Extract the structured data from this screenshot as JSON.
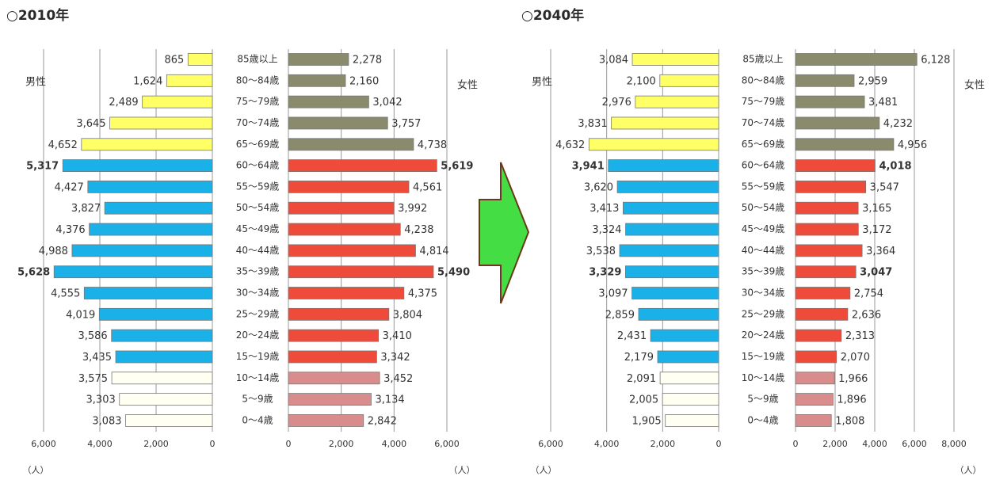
{
  "chart_data": [
    {
      "type": "pyramid",
      "title": "○2010年",
      "categories": [
        "85歳以上",
        "80～84歳",
        "75～79歳",
        "70～74歳",
        "65～69歳",
        "60～64歳",
        "55～59歳",
        "50～54歳",
        "45～49歳",
        "40～44歳",
        "35～39歳",
        "30～34歳",
        "25～29歳",
        "20～24歳",
        "15～19歳",
        "10～14歳",
        "5～9歳",
        "0～4歳"
      ],
      "bold_indices": [
        5,
        10
      ],
      "series": [
        {
          "name": "男性",
          "side": "left",
          "unit_label": "（人）",
          "values": [
            865,
            1624,
            2489,
            3645,
            4652,
            5317,
            4427,
            3827,
            4376,
            4988,
            5628,
            4555,
            4019,
            3586,
            3435,
            3575,
            3303,
            3083
          ],
          "value_labels": [
            "865",
            "1,624",
            "2,489",
            "3,645",
            "4,652",
            "5,317",
            "4,427",
            "3,827",
            "4,376",
            "4,988",
            "5,628",
            "4,555",
            "4,019",
            "3,586",
            "3,435",
            "3,575",
            "3,303",
            "3,083"
          ],
          "colors": [
            "#ffff66",
            "#ffff66",
            "#ffff66",
            "#ffff66",
            "#ffff66",
            "#1ab0e8",
            "#1ab0e8",
            "#1ab0e8",
            "#1ab0e8",
            "#1ab0e8",
            "#1ab0e8",
            "#1ab0e8",
            "#1ab0e8",
            "#1ab0e8",
            "#1ab0e8",
            "#fffff2",
            "#fffff2",
            "#fffff2"
          ],
          "xlim": [
            0,
            6000
          ],
          "xticks": [
            {
              "value": 6000,
              "label": "6,000"
            },
            {
              "value": 4000,
              "label": "4,000"
            },
            {
              "value": 2000,
              "label": "2,000"
            },
            0
          ]
        },
        {
          "name": "女性",
          "side": "right",
          "unit_label": "（人）",
          "values": [
            2278,
            2160,
            3042,
            3757,
            4738,
            5619,
            4561,
            3992,
            4238,
            4814,
            5490,
            4375,
            3804,
            3410,
            3342,
            3452,
            3134,
            2842
          ],
          "value_labels": [
            "2,278",
            "2,160",
            "3,042",
            "3,757",
            "4,738",
            "5,619",
            "4,561",
            "3,992",
            "4,238",
            "4,814",
            "5,490",
            "4,375",
            "3,804",
            "3,410",
            "3,342",
            "3,452",
            "3,134",
            "2,842"
          ],
          "colors": [
            "#8a8a6c",
            "#8a8a6c",
            "#8a8a6c",
            "#8a8a6c",
            "#8a8a6c",
            "#ee4b3b",
            "#ee4b3b",
            "#ee4b3b",
            "#ee4b3b",
            "#ee4b3b",
            "#ee4b3b",
            "#ee4b3b",
            "#ee4b3b",
            "#ee4b3b",
            "#ee4b3b",
            "#d98c8c",
            "#d98c8c",
            "#d98c8c"
          ],
          "xlim": [
            0,
            6000
          ],
          "xticks": [
            0,
            {
              "value": 2000,
              "label": "2,000"
            },
            {
              "value": 4000,
              "label": "4,000"
            },
            {
              "value": 6000,
              "label": "6,000"
            }
          ]
        }
      ]
    },
    {
      "type": "pyramid",
      "title": "○2040年",
      "categories": [
        "85歳以上",
        "80～84歳",
        "75～79歳",
        "70～74歳",
        "65～69歳",
        "60～64歳",
        "55～59歳",
        "50～54歳",
        "45～49歳",
        "40～44歳",
        "35～39歳",
        "30～34歳",
        "25～29歳",
        "20～24歳",
        "15～19歳",
        "10～14歳",
        "5～9歳",
        "0～4歳"
      ],
      "bold_indices": [
        5,
        10
      ],
      "series": [
        {
          "name": "男性",
          "side": "left",
          "unit_label": "（人）",
          "values": [
            3084,
            2100,
            2976,
            3831,
            4632,
            3941,
            3620,
            3413,
            3324,
            3538,
            3329,
            3097,
            2859,
            2431,
            2179,
            2091,
            2005,
            1905
          ],
          "value_labels": [
            "3,084",
            "2,100",
            "2,976",
            "3,831",
            "4,632",
            "3,941",
            "3,620",
            "3,413",
            "3,324",
            "3,538",
            "3,329",
            "3,097",
            "2,859",
            "2,431",
            "2,179",
            "2,091",
            "2,005",
            "1,905"
          ],
          "colors": [
            "#ffff66",
            "#ffff66",
            "#ffff66",
            "#ffff66",
            "#ffff66",
            "#1ab0e8",
            "#1ab0e8",
            "#1ab0e8",
            "#1ab0e8",
            "#1ab0e8",
            "#1ab0e8",
            "#1ab0e8",
            "#1ab0e8",
            "#1ab0e8",
            "#1ab0e8",
            "#fffff2",
            "#fffff2",
            "#fffff2"
          ],
          "xlim": [
            0,
            6000
          ],
          "xticks": [
            {
              "value": 6000,
              "label": "6,000"
            },
            {
              "value": 4000,
              "label": "4,000"
            },
            {
              "value": 2000,
              "label": "2,000"
            },
            0
          ]
        },
        {
          "name": "女性",
          "side": "right",
          "unit_label": "（人）",
          "values": [
            6128,
            2959,
            3481,
            4232,
            4956,
            4018,
            3547,
            3165,
            3172,
            3364,
            3047,
            2754,
            2636,
            2313,
            2070,
            1966,
            1896,
            1808
          ],
          "value_labels": [
            "6,128",
            "2,959",
            "3,481",
            "4,232",
            "4,956",
            "4,018",
            "3,547",
            "3,165",
            "3,172",
            "3,364",
            "3,047",
            "2,754",
            "2,636",
            "2,313",
            "2,070",
            "1,966",
            "1,896",
            "1,808"
          ],
          "colors": [
            "#8a8a6c",
            "#8a8a6c",
            "#8a8a6c",
            "#8a8a6c",
            "#8a8a6c",
            "#ee4b3b",
            "#ee4b3b",
            "#ee4b3b",
            "#ee4b3b",
            "#ee4b3b",
            "#ee4b3b",
            "#ee4b3b",
            "#ee4b3b",
            "#ee4b3b",
            "#ee4b3b",
            "#d98c8c",
            "#d98c8c",
            "#d98c8c"
          ],
          "xlim": [
            0,
            8000
          ],
          "xticks": [
            0,
            {
              "value": 2000,
              "label": "2,000"
            },
            {
              "value": 4000,
              "label": "4,000"
            },
            {
              "value": 6000,
              "label": "6,000"
            },
            {
              "value": 8000,
              "label": "8,000"
            }
          ]
        }
      ]
    }
  ]
}
